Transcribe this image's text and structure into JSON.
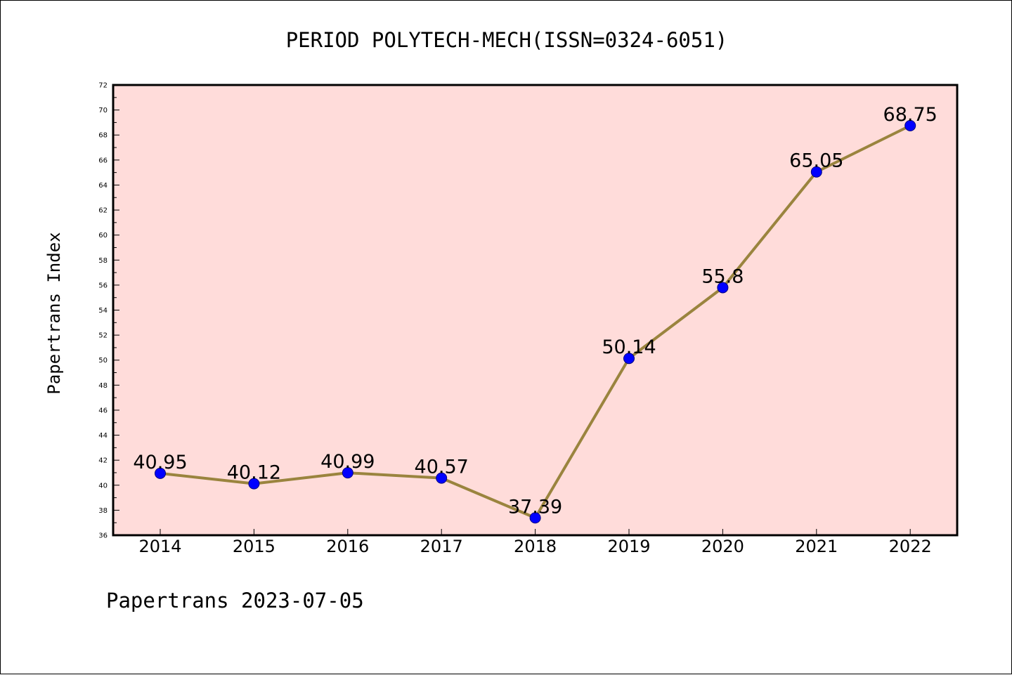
{
  "chart_data": {
    "type": "line",
    "title": "PERIOD POLYTECH-MECH(ISSN=0324-6051)",
    "xlabel": "",
    "ylabel": "Papertrans Index",
    "categories": [
      "2014",
      "2015",
      "2016",
      "2017",
      "2018",
      "2019",
      "2020",
      "2021",
      "2022"
    ],
    "series": [
      {
        "values": [
          40.95,
          40.12,
          40.99,
          40.57,
          37.39,
          50.14,
          55.8,
          65.05,
          68.75
        ],
        "labels": [
          "40.95",
          "40.12",
          "40.99",
          "40.57",
          "37.39",
          "50.14",
          "55.8",
          "65.05",
          "68.75"
        ]
      }
    ],
    "ylim": [
      36,
      72
    ],
    "yticks": [
      36,
      38,
      40,
      42,
      44,
      46,
      48,
      50,
      52,
      54,
      56,
      58,
      60,
      62,
      64,
      66,
      68,
      70,
      72
    ],
    "grid": false,
    "colors": {
      "plot_background": "#FFDCDA",
      "line": "#9A843E",
      "marker": "#0000FF",
      "marker_edge": "#000080",
      "axis": "#000000"
    }
  },
  "footer": "Papertrans 2023-07-05"
}
